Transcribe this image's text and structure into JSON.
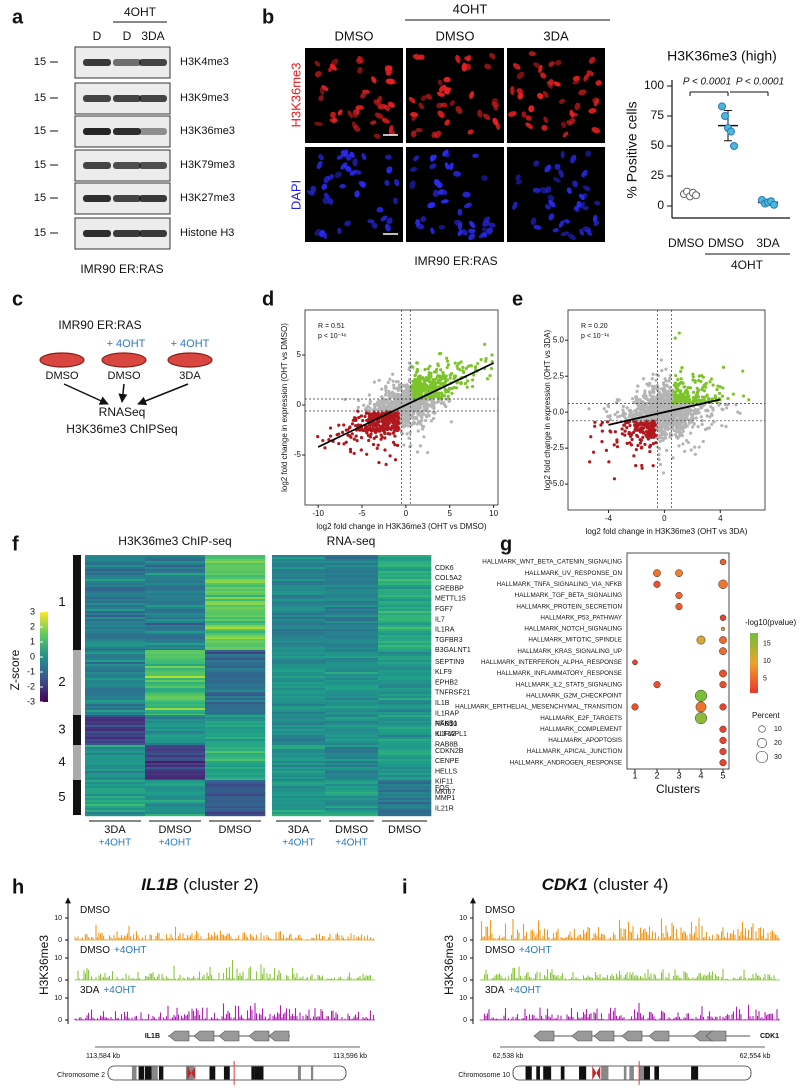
{
  "panel_labels": [
    "a",
    "b",
    "c",
    "d",
    "e",
    "f",
    "g",
    "h",
    "i"
  ],
  "a": {
    "treatment": "4OHT",
    "lanes": [
      "D",
      "D",
      "3DA"
    ],
    "marker": "15",
    "blots": [
      "H3K4me3",
      "H3K9me3",
      "H3K36me3",
      "H3K79me3",
      "H3K27me3",
      "Histone H3"
    ],
    "cell_line": "IMR90 ER:RAS"
  },
  "b": {
    "treatment": "4OHT",
    "columns": [
      "DMSO",
      "DMSO",
      "3DA"
    ],
    "rows": [
      "H3K36me3",
      "DAPI"
    ],
    "cell_line": "IMR90 ER:RAS",
    "plot_title": "H3K36me3 (high)",
    "y_label": "% Positive cells",
    "ylim": [
      -10,
      105
    ],
    "yticks": [
      0,
      25,
      50,
      75,
      100
    ],
    "p_values": [
      "P < 0.0001",
      "P < 0.0001"
    ],
    "x_labels": [
      "DMSO",
      "DMSO",
      "3DA"
    ],
    "x_group": "4OHT",
    "points": [
      [
        10,
        12,
        8,
        11,
        9
      ],
      [
        83,
        75,
        65,
        62,
        50
      ],
      [
        5,
        2,
        3,
        4,
        1
      ]
    ]
  },
  "c": {
    "title": "IMR90 ER:RAS",
    "treatment_labels": [
      "+ 4OHT",
      "+ 4OHT"
    ],
    "dishes": [
      "DMSO",
      "DMSO",
      "3DA"
    ],
    "outputs": [
      "RNASeq",
      "H3K36me3 ChIPSeq"
    ]
  },
  "d": {
    "stats": [
      "R = 0.51",
      "p < 10⁻¹⁶"
    ],
    "x_label": "log2 fold change in H3K36me3 (OHT vs DMSO)",
    "y_label": "log2 fold change in expression (OHT vs DMSO)",
    "xlim": [
      -11.5,
      10.5
    ],
    "xticks": [
      -10,
      -5,
      0,
      5,
      10
    ],
    "ylim": [
      -10,
      9.5
    ],
    "yticks": [
      -5,
      0,
      5
    ]
  },
  "e": {
    "stats": [
      "R = 0.20",
      "p < 10⁻¹⁶"
    ],
    "x_label": "log2 fold change in H3K36me3 (OHT vs 3DA)",
    "y_label": "log2 fold change in expression (OHT vs 3DA)",
    "xlim": [
      -6.9,
      7.2
    ],
    "xticks": [
      -4,
      0,
      4
    ],
    "ylim": [
      -6.8,
      7.1
    ],
    "yticks": [
      {
        "value": -5,
        "label": "-5.0"
      },
      {
        "value": -2.5,
        "label": "-2.5"
      },
      {
        "value": 0,
        "label": "0.0"
      },
      {
        "value": 2.5,
        "label": "2.5"
      },
      {
        "value": 5,
        "label": "5.0"
      }
    ]
  },
  "f": {
    "heat_titles": [
      "H3K36me3 ChIP-seq",
      "RNA-seq"
    ],
    "colorbar_label": "Z-score",
    "colorbar_ticks": [
      3,
      2,
      1,
      0,
      -1,
      -2,
      -3
    ],
    "clusters": [
      "1",
      "2",
      "3",
      "4",
      "5"
    ],
    "genes": [
      [
        "CDK6",
        "COL5A2",
        "CREBBP",
        "METTL15",
        "FGF7",
        "IL7",
        "IL1RA",
        "TGFBR3",
        "B3GALNT1"
      ],
      [
        "SEPTIN9",
        "KLF9",
        "EPHB2",
        "TNFRSF21",
        "IL1B",
        "IL1RAP",
        "NFKB1",
        "IL1RAPL1"
      ],
      [
        "RAB10",
        "KLF12",
        "RAB8B"
      ],
      [
        "CDKN2B",
        "CENPE",
        "HELLS",
        "KIF11",
        "MKI67"
      ],
      [
        "FOS",
        "MMP1",
        "IL21R"
      ]
    ],
    "columns": [
      {
        "name": "3DA",
        "treatment": "+4OHT"
      },
      {
        "name": "DMSO",
        "treatment": "+4OHT"
      },
      {
        "name": "DMSO"
      }
    ]
  },
  "g": {
    "x_label": "Clusters",
    "xticks": [
      1,
      2,
      3,
      4,
      5
    ],
    "color_title": "-log10(pvalue)",
    "color_ticks": [
      15,
      10,
      5
    ],
    "color_lim": [
      1,
      18
    ],
    "size_title": "Percent",
    "size_ticks": [
      10,
      20,
      30
    ],
    "pathways": [
      {
        "name": "HALLMARK_WNT_BETA_CATENIN_SIGNALING",
        "dots": [
          {
            "cluster": 5,
            "log10p": 4,
            "percent": 8
          }
        ]
      },
      {
        "name": "HALLMARK_UV_RESPONSE_DN",
        "dots": [
          {
            "cluster": 2,
            "log10p": 6,
            "percent": 12
          },
          {
            "cluster": 3,
            "log10p": 7,
            "percent": 12
          }
        ]
      },
      {
        "name": "HALLMARK_TNFA_SIGNALING_VIA_NFKB",
        "dots": [
          {
            "cluster": 2,
            "log10p": 3,
            "percent": 10
          },
          {
            "cluster": 5,
            "log10p": 6,
            "percent": 18
          }
        ]
      },
      {
        "name": "HALLMARK_TGF_BETA_SIGNALING",
        "dots": [
          {
            "cluster": 3,
            "log10p": 5,
            "percent": 10
          }
        ]
      },
      {
        "name": "HALLMARK_PROTEIN_SECRETION",
        "dots": [
          {
            "cluster": 3,
            "log10p": 4,
            "percent": 10
          }
        ]
      },
      {
        "name": "HALLMARK_P53_PATHWAY",
        "dots": [
          {
            "cluster": 5,
            "log10p": 2,
            "percent": 8
          }
        ]
      },
      {
        "name": "HALLMARK_NOTCH_SIGNALING",
        "dots": [
          {
            "cluster": 5,
            "log10p": 9,
            "percent": 3
          }
        ]
      },
      {
        "name": "HALLMARK_MITOTIC_SPINDLE",
        "dots": [
          {
            "cluster": 4,
            "log10p": 11,
            "percent": 16
          },
          {
            "cluster": 5,
            "log10p": 5,
            "percent": 12
          }
        ]
      },
      {
        "name": "HALLMARK_KRAS_SIGNALING_UP",
        "dots": [
          {
            "cluster": 5,
            "log10p": 5,
            "percent": 12
          }
        ]
      },
      {
        "name": "HALLMARK_INTERFERON_ALPHA_RESPONSE",
        "dots": [
          {
            "cluster": 1,
            "log10p": 2,
            "percent": 6
          }
        ]
      },
      {
        "name": "HALLMARK_INFLAMMATORY_RESPONSE",
        "dots": [
          {
            "cluster": 5,
            "log10p": 3,
            "percent": 12
          }
        ]
      },
      {
        "name": "HALLMARK_IL2_STAT5_SIGNALING",
        "dots": [
          {
            "cluster": 2,
            "log10p": 3,
            "percent": 10
          },
          {
            "cluster": 5,
            "log10p": 3,
            "percent": 10
          }
        ]
      },
      {
        "name": "HALLMARK_G2M_CHECKPOINT",
        "dots": [
          {
            "cluster": 4,
            "log10p": 17,
            "percent": 30
          }
        ]
      },
      {
        "name": "HALLMARK_EPITHELIAL_MESENCHYMAL_TRANSITION",
        "dots": [
          {
            "cluster": 1,
            "log10p": 3,
            "percent": 10
          },
          {
            "cluster": 4,
            "log10p": 6,
            "percent": 24
          },
          {
            "cluster": 5,
            "log10p": 2,
            "percent": 10
          }
        ]
      },
      {
        "name": "HALLMARK_E2F_TARGETS",
        "dots": [
          {
            "cluster": 4,
            "log10p": 16,
            "percent": 30
          }
        ]
      },
      {
        "name": "HALLMARK_COMPLEMENT",
        "dots": [
          {
            "cluster": 5,
            "log10p": 2,
            "percent": 10
          }
        ]
      },
      {
        "name": "HALLMARK_APOPTOSIS",
        "dots": [
          {
            "cluster": 5,
            "log10p": 2,
            "percent": 10
          }
        ]
      },
      {
        "name": "HALLMARK_APICAL_JUNCTION",
        "dots": [
          {
            "cluster": 5,
            "log10p": 2,
            "percent": 10
          }
        ]
      },
      {
        "name": "HALLMARK_ANDROGEN_RESPONSE",
        "dots": [
          {
            "cluster": 5,
            "log10p": 2,
            "percent": 10
          }
        ]
      }
    ]
  },
  "h": {
    "gene": "IL1B",
    "subtitle": "(cluster 2)",
    "y_label": "H3K36me3",
    "track_ticks": [
      10,
      0
    ],
    "tracks": [
      {
        "name": "DMSO"
      },
      {
        "name": "DMSO",
        "treatment": "+4OHT"
      },
      {
        "name": "3DA",
        "treatment": "+4OHT"
      }
    ],
    "gene_label": "IL1B",
    "coords": [
      "113,584 kb",
      "113,596 kb"
    ],
    "chromosome": "Chromosome 2"
  },
  "i": {
    "gene": "CDK1",
    "subtitle": "(cluster 4)",
    "y_label": "H3K36me3",
    "track_ticks": [
      10,
      0
    ],
    "tracks": [
      {
        "name": "DMSO"
      },
      {
        "name": "DMSO",
        "treatment": "+4OHT"
      },
      {
        "name": "3DA",
        "treatment": "+4OHT"
      }
    ],
    "gene_label": "CDK1",
    "coords": [
      "62,538 kb",
      "62,554 kb"
    ],
    "chromosome": "Chromosome 10"
  }
}
